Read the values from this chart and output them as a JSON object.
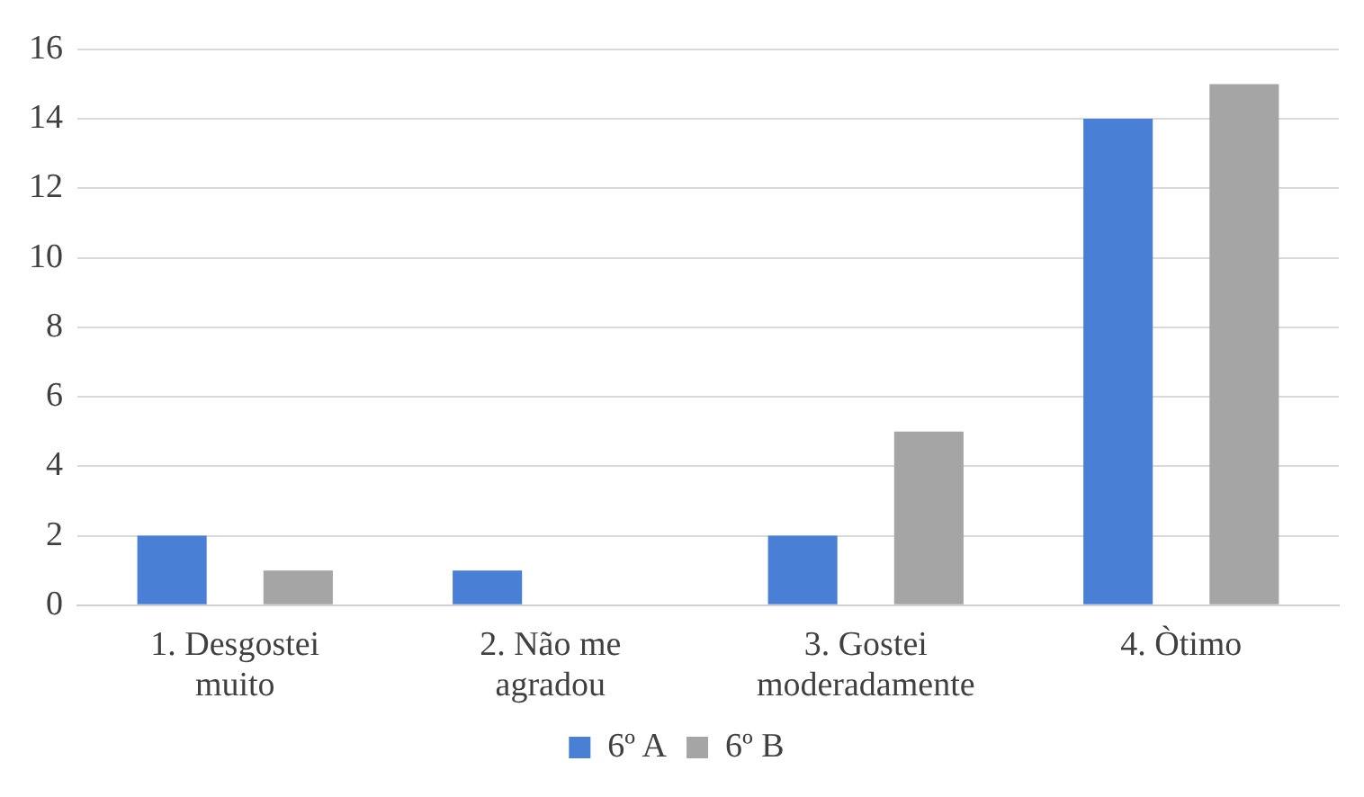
{
  "chart_data": {
    "type": "bar",
    "categories": [
      "1. Desgostei muito",
      "2. Não me agradou",
      "3. Gostei moderadamente",
      "4. Òtimo"
    ],
    "series": [
      {
        "name": "6º A",
        "color": "#4a7fd6",
        "values": [
          2,
          1,
          2,
          14
        ]
      },
      {
        "name": "6º B",
        "color": "#a5a5a5",
        "values": [
          1,
          0,
          5,
          15
        ]
      }
    ],
    "ylim": [
      0,
      16
    ],
    "yticks": [
      0,
      2,
      4,
      6,
      8,
      10,
      12,
      14,
      16
    ],
    "grid": "y",
    "legend": "bottom"
  }
}
